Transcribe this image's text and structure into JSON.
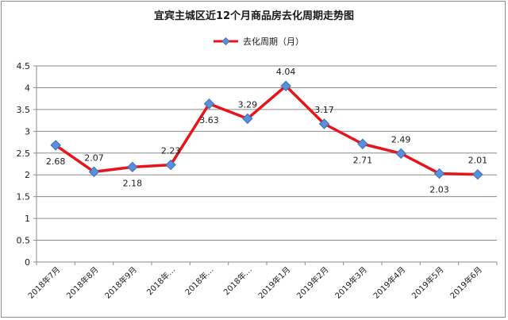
{
  "chart_data": {
    "type": "line",
    "title": "宜宾主城区近12个月商品房去化周期走势图",
    "xlabel": "",
    "ylabel": "",
    "categories": [
      "2018年7月",
      "2018年8月",
      "2018年9月",
      "2018年…",
      "2018年…",
      "2018年…",
      "2019年1月",
      "2019年2月",
      "2019年3月",
      "2019年4月",
      "2019年5月",
      "2019年6月"
    ],
    "series": [
      {
        "name": "去化周期（月）",
        "values": [
          2.68,
          2.07,
          2.18,
          2.23,
          3.63,
          3.29,
          4.04,
          3.17,
          2.71,
          2.49,
          2.03,
          2.01
        ],
        "labels": [
          "2.68",
          "2.07",
          "2.18",
          "2.23",
          "3.63",
          "3.29",
          "4.04",
          "3.17",
          "2.71",
          "2.49",
          "2.03",
          "2.01"
        ]
      }
    ],
    "ylim": [
      0,
      4.5
    ],
    "yticks": [
      "0",
      "0.5",
      "1",
      "1.5",
      "2",
      "2.5",
      "3",
      "3.5",
      "4",
      "4.5"
    ],
    "grid": true,
    "legend_position": "top-center",
    "line_color": "#e8141b",
    "marker_color": "#5b8fd6",
    "marker_shape": "diamond"
  }
}
